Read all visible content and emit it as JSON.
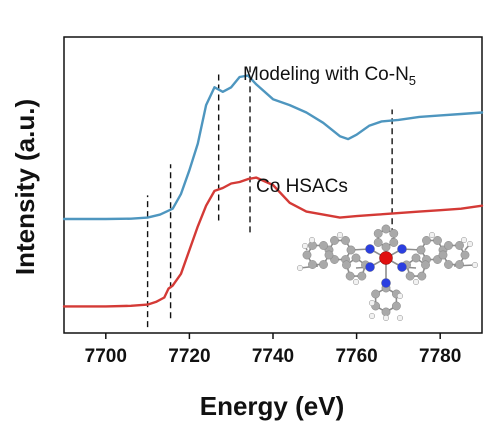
{
  "chart_data": {
    "type": "line",
    "xlabel": "Energy (eV)",
    "ylabel": "Intensity (a.u.)",
    "xlim": [
      7690,
      7790
    ],
    "ylim": [
      0,
      1
    ],
    "xticks": [
      "7700",
      "7720",
      "7740",
      "7760",
      "7780"
    ],
    "xtick_values": [
      7700,
      7720,
      7740,
      7760,
      7780
    ],
    "y_tick_labels": false,
    "grid": false,
    "series": [
      {
        "name": "Modeling with Co-N5",
        "label_main": "Modeling with Co-N",
        "label_sub": "5",
        "color": "#4e96bf",
        "x": [
          7690,
          7700,
          7706,
          7710,
          7713,
          7716,
          7718,
          7720,
          7722,
          7724,
          7726,
          7728,
          7730,
          7732,
          7734,
          7736,
          7740,
          7744,
          7748,
          7752,
          7756,
          7758,
          7760,
          7763,
          7766,
          7770,
          7775,
          7780,
          7785,
          7790
        ],
        "y": [
          0.385,
          0.385,
          0.386,
          0.39,
          0.4,
          0.42,
          0.47,
          0.55,
          0.64,
          0.77,
          0.83,
          0.815,
          0.83,
          0.865,
          0.87,
          0.84,
          0.79,
          0.77,
          0.745,
          0.71,
          0.665,
          0.655,
          0.67,
          0.7,
          0.715,
          0.72,
          0.73,
          0.735,
          0.74,
          0.745
        ]
      },
      {
        "name": "Co HSACs",
        "label_main": "Co HSACs",
        "color": "#d43a36",
        "x": [
          7690,
          7700,
          7706,
          7710,
          7712,
          7714,
          7715,
          7716,
          7718,
          7720,
          7722,
          7724,
          7726,
          7728,
          7730,
          7732,
          7734,
          7736,
          7740,
          7744,
          7748,
          7752,
          7756,
          7760,
          7765,
          7770,
          7775,
          7780,
          7785,
          7790
        ],
        "y": [
          0.09,
          0.09,
          0.092,
          0.096,
          0.105,
          0.12,
          0.15,
          0.16,
          0.2,
          0.28,
          0.36,
          0.43,
          0.48,
          0.49,
          0.505,
          0.51,
          0.52,
          0.525,
          0.5,
          0.44,
          0.41,
          0.4,
          0.39,
          0.395,
          0.4,
          0.405,
          0.41,
          0.415,
          0.42,
          0.43
        ]
      }
    ],
    "vlines": [
      {
        "x": 7710,
        "y_from": 0.02,
        "y_to": 0.465
      },
      {
        "x": 7715.5,
        "y_from": 0.05,
        "y_to": 0.57
      },
      {
        "x": 7727,
        "y_from": 0.38,
        "y_to": 0.88
      },
      {
        "x": 7734.5,
        "y_from": 0.34,
        "y_to": 0.905
      },
      {
        "x": 7768.5,
        "y_from": 0.3,
        "y_to": 0.755
      }
    ]
  },
  "inset": {
    "name": "Co-N5 molecular structure",
    "atom_colors": {
      "carbon": "#a9a9a9",
      "nitrogen": "#2b3fe0",
      "cobalt": "#e01010",
      "hydrogen": "#f2f2f2"
    }
  }
}
